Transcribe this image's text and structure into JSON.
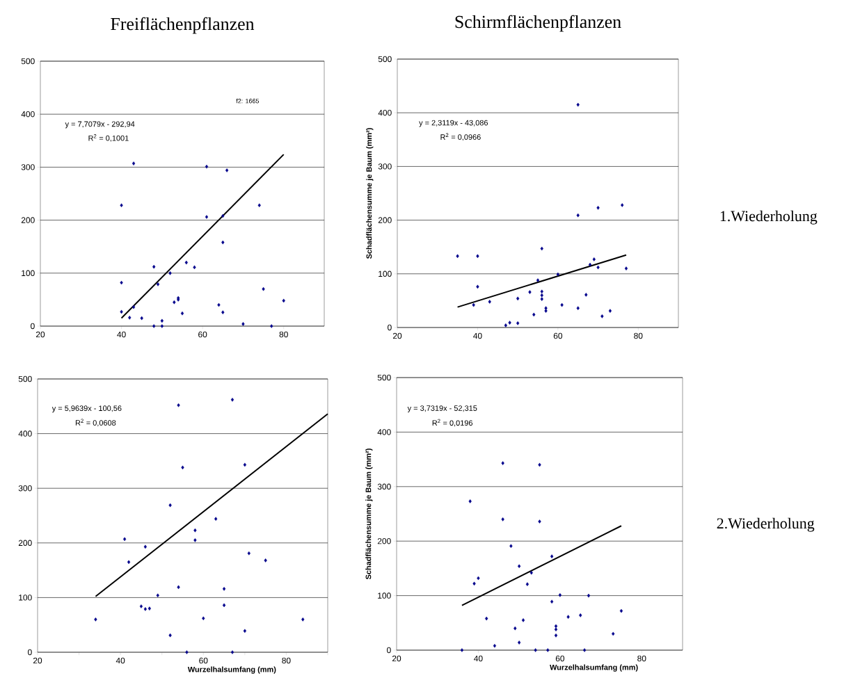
{
  "chart_data": [
    {
      "type": "scatter",
      "title": "Freiflächenpflanzen",
      "xlim": [
        20,
        90
      ],
      "ylim": [
        0,
        500
      ],
      "xticks": [
        20,
        40,
        60,
        80
      ],
      "yticks": [
        0,
        100,
        200,
        300,
        400,
        500
      ],
      "grid": "y",
      "marker": "diamond",
      "annotations": [
        "y = 7,7079x - 292,94",
        "R$^{2}$ = 0,1001",
        "f2: 1665"
      ],
      "series": [
        {
          "color": "#00008b",
          "x": [
            40,
            43,
            40,
            40,
            42,
            43,
            45,
            48,
            48,
            49,
            50,
            50,
            52,
            53,
            54,
            54,
            55,
            56,
            58,
            61,
            61,
            64,
            65,
            65,
            65,
            66,
            70,
            74,
            75,
            77,
            80
          ],
          "values": [
            228,
            307,
            82,
            27,
            16,
            36,
            15,
            112,
            0,
            79,
            10,
            0,
            100,
            45,
            53,
            50,
            24,
            120,
            111,
            301,
            206,
            40,
            208,
            158,
            26,
            294,
            4,
            228,
            70,
            0,
            48
          ]
        },
        {
          "type": "line",
          "marker": "none",
          "color": "#000000",
          "x": [
            40,
            80
          ],
          "values": [
            15,
            324
          ]
        }
      ]
    },
    {
      "type": "scatter",
      "title": "Schirmflächenpflanzen",
      "ylabel": "Schadflächensumme je Baum (mm²)",
      "xlim": [
        20,
        90
      ],
      "ylim": [
        0,
        500
      ],
      "xticks": [
        20,
        40,
        60,
        80
      ],
      "yticks": [
        0,
        100,
        200,
        300,
        400,
        500
      ],
      "grid": "y",
      "marker": "diamond",
      "annotations": [
        "y = 2,3119x - 43,086",
        "R$^{2}$ = 0,0966",
        "1.Wiederholung"
      ],
      "series": [
        {
          "color": "#00008b",
          "x": [
            65,
            65,
            70,
            76,
            35,
            40,
            40,
            39,
            43,
            47,
            48,
            50,
            50,
            53,
            54,
            55,
            56,
            56,
            56,
            56,
            57,
            57,
            60,
            61,
            65,
            67,
            68,
            69,
            70,
            71,
            73,
            77
          ],
          "values": [
            415,
            209,
            223,
            228,
            133,
            133,
            76,
            42,
            48,
            4,
            9,
            54,
            8,
            66,
            24,
            88,
            147,
            67,
            60,
            53,
            36,
            31,
            99,
            42,
            36,
            61,
            117,
            127,
            112,
            21,
            31,
            110
          ]
        },
        {
          "type": "line",
          "marker": "none",
          "color": "#000000",
          "x": [
            35,
            77
          ],
          "values": [
            38,
            135
          ]
        }
      ]
    },
    {
      "type": "scatter",
      "xlabel": "Wurzelhalsumfang (mm)",
      "xlim": [
        20,
        90
      ],
      "ylim": [
        0,
        500
      ],
      "xticks": [
        20,
        {
          "value": 30,
          "label": null
        },
        40,
        {
          "value": 50,
          "label": null
        },
        60,
        {
          "value": 70,
          "label": null
        },
        80,
        {
          "value": 90,
          "label": null
        }
      ],
      "yticks": [
        0,
        100,
        200,
        300,
        400,
        500
      ],
      "grid": "y",
      "marker": "diamond",
      "annotations": [
        "y = 5,9639x - 100,56",
        "R$^{2}$ = 0,0608"
      ],
      "series": [
        {
          "color": "#00008b",
          "x": [
            34,
            41,
            42,
            45,
            46,
            46,
            47,
            49,
            52,
            52,
            54,
            54,
            55,
            56,
            58,
            58,
            60,
            63,
            65,
            65,
            67,
            67,
            70,
            70,
            71,
            75,
            84
          ],
          "values": [
            60,
            207,
            165,
            84,
            193,
            79,
            80,
            104,
            269,
            31,
            452,
            119,
            338,
            0,
            223,
            205,
            62,
            244,
            116,
            86,
            462,
            0,
            343,
            39,
            181,
            168,
            60
          ]
        },
        {
          "type": "line",
          "marker": "none",
          "color": "#000000",
          "x": [
            34,
            90
          ],
          "values": [
            102,
            436
          ]
        }
      ]
    },
    {
      "type": "scatter",
      "xlabel": "Wurzelhalsumfang (mm)",
      "ylabel": "Schadflächensumme je Baum (mm²)",
      "xlim": [
        20,
        90
      ],
      "ylim": [
        0,
        500
      ],
      "xticks": [
        20,
        40,
        60,
        80
      ],
      "yticks": [
        0,
        100,
        200,
        300,
        400,
        500
      ],
      "grid": "y",
      "marker": "diamond",
      "annotations": [
        "y = 3,7319x - 52,315",
        "R$^{2}$ = 0,0196",
        "2.Wiederholung"
      ],
      "series": [
        {
          "color": "#00008b",
          "x": [
            36,
            38,
            39,
            40,
            42,
            44,
            46,
            46,
            48,
            49,
            50,
            50,
            51,
            52,
            53,
            54,
            55,
            55,
            57,
            58,
            58,
            59,
            59,
            59,
            60,
            62,
            65,
            66,
            67,
            73,
            75
          ],
          "values": [
            0,
            273,
            122,
            132,
            58,
            8,
            343,
            240,
            191,
            40,
            154,
            14,
            55,
            121,
            142,
            0,
            340,
            236,
            0,
            172,
            89,
            44,
            38,
            27,
            101,
            61,
            64,
            0,
            100,
            30,
            72
          ]
        },
        {
          "type": "line",
          "marker": "none",
          "color": "#000000",
          "x": [
            36,
            75
          ],
          "values": [
            82,
            228
          ]
        }
      ]
    }
  ]
}
